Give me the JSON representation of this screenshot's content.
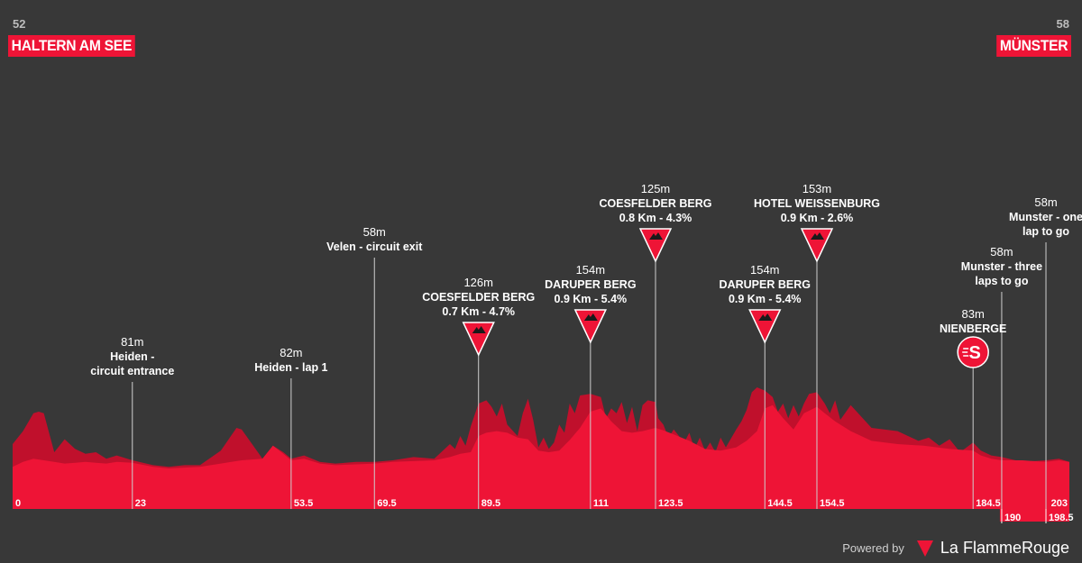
{
  "header": {
    "start": {
      "elevation": "52",
      "name": "HALTERN AM SEE"
    },
    "finish": {
      "elevation": "58",
      "name": "MÜNSTER"
    }
  },
  "footer": {
    "powered_label": "Powered by",
    "brand": "La FlammeRouge"
  },
  "colors": {
    "background": "#383838",
    "profile": "#ee1436",
    "profile_dark": "#c0102c",
    "text": "#ffffff"
  },
  "chart_data": {
    "type": "area",
    "xlabel": "",
    "ylabel": "",
    "xlim": [
      0,
      203
    ],
    "ylim": [
      0,
      300
    ],
    "profile": {
      "x": [
        0,
        2,
        4,
        6,
        8,
        10,
        12,
        14,
        16,
        18,
        20,
        23,
        27,
        30,
        33,
        36,
        40,
        44,
        48,
        50,
        52,
        53.5,
        56,
        59,
        62,
        66,
        69.5,
        73,
        77,
        81,
        84,
        86,
        88,
        89.5,
        91,
        93,
        95,
        97,
        99,
        101,
        103,
        105,
        107,
        109,
        111,
        113,
        115,
        117,
        119,
        121,
        123.5,
        125,
        127,
        130,
        133,
        136,
        139,
        141,
        143,
        144.5,
        146,
        148,
        150,
        152,
        154.5,
        156,
        158,
        161,
        165,
        170,
        175,
        180,
        184.5,
        186,
        188,
        190,
        194,
        198.5,
        201,
        203
      ],
      "y": [
        52,
        58,
        62,
        60,
        58,
        56,
        57,
        58,
        57,
        56,
        58,
        57,
        52,
        50,
        51,
        52,
        56,
        60,
        62,
        78,
        68,
        60,
        62,
        56,
        54,
        55,
        56,
        58,
        59,
        60,
        64,
        68,
        70,
        90,
        94,
        96,
        94,
        88,
        86,
        72,
        70,
        72,
        85,
        100,
        120,
        124,
        108,
        96,
        94,
        96,
        100,
        97,
        92,
        84,
        74,
        72,
        76,
        84,
        96,
        124,
        128,
        112,
        98,
        118,
        126,
        118,
        108,
        96,
        84,
        80,
        78,
        74,
        72,
        66,
        62,
        60,
        60,
        58,
        60,
        58
      ]
    },
    "ridge": {
      "x": [
        0,
        2,
        4,
        5,
        6,
        8,
        10,
        12,
        14,
        16,
        18,
        20,
        23,
        27,
        30,
        33,
        36,
        40,
        43,
        44,
        46,
        48,
        50,
        52,
        53.5,
        56,
        59,
        62,
        66,
        69.5,
        73,
        77,
        81,
        84,
        85,
        86,
        87,
        88,
        89.5,
        91,
        92,
        93,
        94,
        95,
        97,
        98,
        99,
        100,
        101,
        102,
        103,
        104,
        105,
        106,
        107,
        108,
        109,
        111,
        113,
        114,
        115,
        116,
        117,
        118,
        119,
        120,
        121,
        122,
        123.5,
        124,
        125,
        126,
        127,
        129,
        130,
        131,
        132,
        133,
        134,
        135,
        136,
        137,
        139,
        140,
        141,
        142,
        143,
        144.5,
        146,
        147,
        148,
        149,
        150,
        151,
        152,
        153,
        154.5,
        156,
        157,
        158,
        159,
        161,
        165,
        170,
        172,
        174,
        176,
        178,
        180,
        182,
        184.5,
        186,
        188,
        190,
        194,
        198.5,
        201,
        203
      ],
      "y": [
        80,
        96,
        118,
        120,
        118,
        70,
        86,
        74,
        68,
        70,
        62,
        66,
        60,
        54,
        52,
        54,
        54,
        72,
        100,
        98,
        80,
        62,
        78,
        70,
        62,
        66,
        58,
        56,
        58,
        58,
        60,
        64,
        62,
        80,
        74,
        90,
        78,
        102,
        130,
        134,
        126,
        114,
        130,
        104,
        90,
        118,
        136,
        110,
        76,
        88,
        74,
        82,
        104,
        94,
        130,
        118,
        140,
        142,
        138,
        112,
        124,
        118,
        132,
        106,
        126,
        96,
        128,
        134,
        132,
        112,
        104,
        88,
        98,
        82,
        94,
        74,
        88,
        72,
        82,
        70,
        88,
        76,
        98,
        108,
        122,
        144,
        150,
        146,
        138,
        120,
        130,
        112,
        128,
        114,
        130,
        142,
        144,
        130,
        118,
        134,
        110,
        128,
        100,
        96,
        90,
        84,
        88,
        78,
        86,
        70,
        82,
        72,
        66,
        64,
        58,
        60,
        62,
        58
      ]
    },
    "km_labels": [
      "0",
      "23",
      "53.5",
      "69.5",
      "89.5",
      "111",
      "123.5",
      "144.5",
      "154.5",
      "184.5",
      "190",
      "198.5",
      "203"
    ],
    "km_inside": [
      {
        "km": 0,
        "label": "0"
      },
      {
        "km": 23,
        "label": "23"
      },
      {
        "km": 53.5,
        "label": "53.5"
      },
      {
        "km": 69.5,
        "label": "69.5"
      },
      {
        "km": 89.5,
        "label": "89.5"
      },
      {
        "km": 111,
        "label": "111"
      },
      {
        "km": 123.5,
        "label": "123.5"
      },
      {
        "km": 144.5,
        "label": "144.5"
      },
      {
        "km": 154.5,
        "label": "154.5"
      },
      {
        "km": 184.5,
        "label": "184.5"
      },
      {
        "km": 203,
        "label": "203"
      }
    ],
    "km_outside": [
      {
        "km": 190,
        "label": "190"
      },
      {
        "km": 198.5,
        "label": "198.5"
      }
    ],
    "annotations": [
      {
        "km": 23,
        "elev": "81m",
        "lines": [
          "Heiden -",
          "circuit entrance"
        ],
        "icon": "none"
      },
      {
        "km": 53.5,
        "elev": "82m",
        "lines": [
          "Heiden - lap 1"
        ],
        "icon": "none"
      },
      {
        "km": 69.5,
        "elev": "58m",
        "lines": [
          "Velen - circuit exit"
        ],
        "icon": "none"
      },
      {
        "km": 89.5,
        "elev": "126m",
        "lines": [
          "COESFELDER BERG",
          "0.7 Km - 4.7%"
        ],
        "icon": "climb"
      },
      {
        "km": 111,
        "elev": "154m",
        "lines": [
          "DARUPER BERG",
          "0.9 Km - 5.4%"
        ],
        "icon": "climb"
      },
      {
        "km": 123.5,
        "elev": "125m",
        "lines": [
          "COESFELDER BERG",
          "0.8 Km - 4.3%"
        ],
        "icon": "climb"
      },
      {
        "km": 144.5,
        "elev": "154m",
        "lines": [
          "DARUPER BERG",
          "0.9 Km - 5.4%"
        ],
        "icon": "climb"
      },
      {
        "km": 154.5,
        "elev": "153m",
        "lines": [
          "HOTEL WEISSENBURG",
          "0.9 Km - 2.6%"
        ],
        "icon": "climb"
      },
      {
        "km": 184.5,
        "elev": "83m",
        "lines": [
          "NIENBERGE"
        ],
        "icon": "sprint"
      },
      {
        "km": 190,
        "elev": "58m",
        "lines": [
          "Munster - three",
          "laps to go"
        ],
        "icon": "none"
      },
      {
        "km": 198.5,
        "elev": "58m",
        "lines": [
          "Munster - one",
          "lap to go"
        ],
        "icon": "none"
      }
    ]
  }
}
